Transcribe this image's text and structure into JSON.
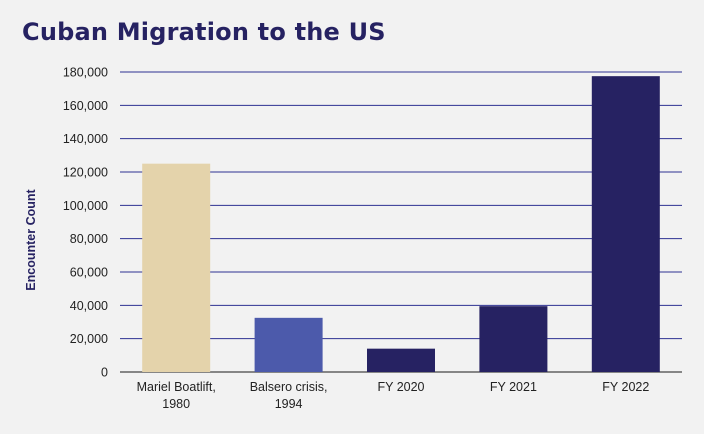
{
  "chart_data": {
    "type": "bar",
    "title": "Cuban Migration to the US",
    "xlabel": "",
    "ylabel": "Encounter Count",
    "ylim": [
      0,
      180000
    ],
    "yticks": [
      0,
      20000,
      40000,
      60000,
      80000,
      100000,
      120000,
      140000,
      160000,
      180000
    ],
    "ytick_labels": [
      "0",
      "20,000",
      "40,000",
      "60,000",
      "80,000",
      "100,000",
      "120,000",
      "140,000",
      "160,000",
      "180,000"
    ],
    "categories": [
      [
        "Mariel Boatlift,",
        "1980"
      ],
      [
        "Balsero crisis,",
        "1994"
      ],
      [
        "FY 2020"
      ],
      [
        "FY 2021"
      ],
      [
        "FY 2022"
      ]
    ],
    "values": [
      125000,
      32500,
      14000,
      39500,
      177500
    ],
    "colors": [
      "#e4d3ab",
      "#4c5aab",
      "#262262",
      "#262262",
      "#262262"
    ],
    "grid": true,
    "grid_color": "#2e3192"
  }
}
